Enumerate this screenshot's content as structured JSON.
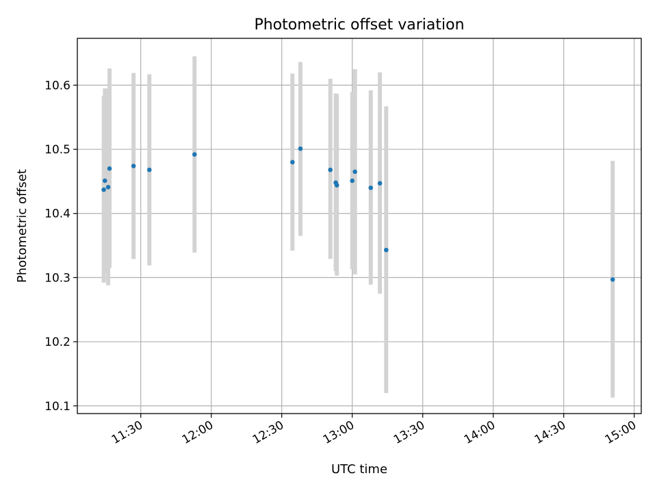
{
  "chart_data": {
    "type": "scatter",
    "title": "Photometric offset variation",
    "xlabel": "UTC time",
    "ylabel": "Photometric offset",
    "x_is_time": true,
    "xlim": [
      "11:03",
      "15:03"
    ],
    "ylim": [
      10.088,
      10.673
    ],
    "xticks": [
      "11:30",
      "12:00",
      "12:30",
      "13:00",
      "13:30",
      "14:00",
      "14:30",
      "15:00"
    ],
    "yticks": [
      10.1,
      10.2,
      10.3,
      10.4,
      10.5,
      10.6
    ],
    "ytick_labels": [
      "10.1",
      "10.2",
      "10.3",
      "10.4",
      "10.5",
      "10.6"
    ],
    "grid": true,
    "point_color": "#1f77b4",
    "errorbar_color": "#d3d3d3",
    "series": [
      {
        "points": [
          {
            "time": "11:14:15",
            "y": 10.437,
            "lo": 10.292,
            "hi": 10.583
          },
          {
            "time": "11:14:44",
            "y": 10.451,
            "lo": 10.306,
            "hi": 10.595
          },
          {
            "time": "11:16:07",
            "y": 10.441,
            "lo": 10.288,
            "hi": 10.595
          },
          {
            "time": "11:16:42",
            "y": 10.47,
            "lo": 10.315,
            "hi": 10.626
          },
          {
            "time": "11:26:55",
            "y": 10.474,
            "lo": 10.329,
            "hi": 10.619
          },
          {
            "time": "11:33:39",
            "y": 10.468,
            "lo": 10.319,
            "hi": 10.617
          },
          {
            "time": "11:52:53",
            "y": 10.492,
            "lo": 10.339,
            "hi": 10.645
          },
          {
            "time": "12:34:33",
            "y": 10.48,
            "lo": 10.342,
            "hi": 10.618
          },
          {
            "time": "12:37:57",
            "y": 10.501,
            "lo": 10.365,
            "hi": 10.636
          },
          {
            "time": "12:50:41",
            "y": 10.468,
            "lo": 10.329,
            "hi": 10.61
          },
          {
            "time": "12:52:58",
            "y": 10.448,
            "lo": 10.31,
            "hi": 10.587
          },
          {
            "time": "12:53:27",
            "y": 10.444,
            "lo": 10.303,
            "hi": 10.586
          },
          {
            "time": "13:00:00",
            "y": 10.451,
            "lo": 10.313,
            "hi": 10.589
          },
          {
            "time": "13:01:09",
            "y": 10.465,
            "lo": 10.305,
            "hi": 10.625
          },
          {
            "time": "13:07:53",
            "y": 10.44,
            "lo": 10.289,
            "hi": 10.592
          },
          {
            "time": "13:11:46",
            "y": 10.447,
            "lo": 10.275,
            "hi": 10.62
          },
          {
            "time": "13:14:27",
            "y": 10.343,
            "lo": 10.12,
            "hi": 10.567
          },
          {
            "time": "14:50:50",
            "y": 10.297,
            "lo": 10.113,
            "hi": 10.482
          }
        ]
      }
    ]
  }
}
